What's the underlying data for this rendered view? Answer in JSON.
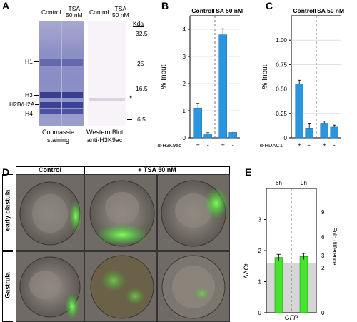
{
  "panels": {
    "A": {
      "letter": "A",
      "lane_headers": [
        "Control",
        "TSA\n50 nM",
        "Control",
        "TSA\n50 nM"
      ],
      "kda_label": "Kda",
      "kda_markers": [
        "32.5",
        "25",
        "16.5",
        "6.5"
      ],
      "band_labels": [
        "H1",
        "H3",
        "H2B/H2A",
        "H4"
      ],
      "star": "*",
      "captions": {
        "left": "Coomassie\nstaining",
        "right": "Western Blot\nanti-H3K9ac"
      }
    },
    "B": {
      "letter": "B"
    },
    "C": {
      "letter": "C"
    },
    "D": {
      "letter": "D",
      "col_headers": [
        "Control",
        "+ TSA 50 nM"
      ],
      "row_labels": [
        "early blastula",
        "Gastrula"
      ]
    },
    "E": {
      "letter": "E"
    }
  },
  "chart_data": [
    {
      "panel": "B",
      "type": "bar",
      "groups": [
        "Control",
        "TSA 50 nM"
      ],
      "conditions": [
        "+",
        "-"
      ],
      "x_label_prefix": "α-H3K9ac",
      "ylabel": "% Input",
      "ylim": [
        0,
        4.5
      ],
      "yticks": [
        "0",
        "1",
        "2",
        "3",
        "4"
      ],
      "values": [
        1.1,
        0.15,
        3.8,
        0.2
      ],
      "errors": [
        0.17,
        0.04,
        0.22,
        0.05
      ],
      "bar_color": "#2a96df"
    },
    {
      "panel": "C",
      "type": "bar",
      "groups": [
        "Control",
        "TSA 50 nM"
      ],
      "conditions": [
        "+",
        "-"
      ],
      "x_label_prefix": "α-HDAC1",
      "ylabel": "% Input",
      "ylim": [
        0,
        1.25
      ],
      "yticks": [
        "0",
        "0.25",
        "0.50",
        "0.75",
        "1.00"
      ],
      "values": [
        0.55,
        0.1,
        0.15,
        0.11
      ],
      "errors": [
        0.04,
        0.05,
        0.02,
        0.02
      ],
      "bar_color": "#2a96df"
    },
    {
      "panel": "E",
      "type": "bar",
      "groups": [
        "6h",
        "9h"
      ],
      "xlabel": "GFP",
      "ylabel": "ΔΔCt",
      "ylabel_right": "Fold difference",
      "ylim": [
        0,
        4
      ],
      "yticks": [
        "0",
        "1",
        "2",
        "3"
      ],
      "yticks_right": [
        "0",
        "2",
        "3",
        "6",
        "9"
      ],
      "values": [
        1.78,
        1.81
      ],
      "errors": [
        0.1,
        0.1
      ],
      "reference_line": 1.6,
      "bar_color": "#44e52c",
      "shade_color": "#d6d6d6"
    }
  ]
}
